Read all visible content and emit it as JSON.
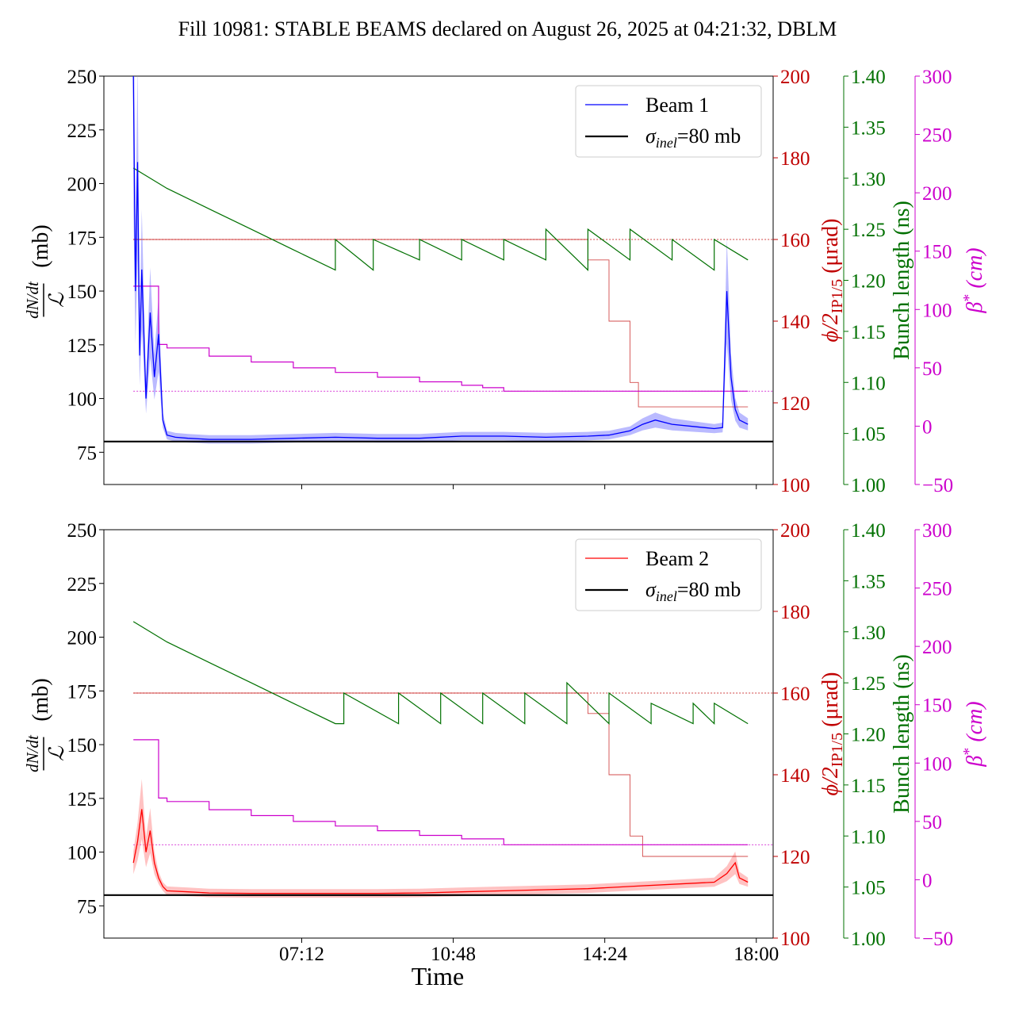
{
  "title": "Fill 10981: STABLE BEAMS declared on August 26, 2025 at 04:21:32, DBLM",
  "colors": {
    "beam1": "#0000ff",
    "beam1_band": "#8c8cff",
    "beam2": "#ff0000",
    "beam2_band": "#ff9a9a",
    "crossing_angle": "#c00000",
    "bunch_length": "#007000",
    "beta_star": "#cc00cc",
    "reference": "#000000"
  },
  "axis_labels": {
    "y_left_main": "dN/dt",
    "y_left_denom": "ℒ",
    "y_left_unit": "(mb)",
    "y_right1_main": "ϕ/2",
    "y_right1_sub": "IP1/5",
    "y_right1_unit": "(μrad)",
    "y_right2": "Bunch length (ns)",
    "y_right3_main": "β",
    "y_right3_sup": "*",
    "y_right3_unit": "(cm)",
    "x": "Time"
  },
  "ticks": {
    "left": [
      "75",
      "100",
      "125",
      "150",
      "175",
      "200",
      "225",
      "250"
    ],
    "right1": [
      "100",
      "120",
      "140",
      "160",
      "180",
      "200"
    ],
    "right2": [
      "1.00",
      "1.05",
      "1.10",
      "1.15",
      "1.20",
      "1.25",
      "1.30",
      "1.35",
      "1.40"
    ],
    "right3": [
      "−50",
      "0",
      "50",
      "100",
      "150",
      "200",
      "250",
      "300"
    ],
    "x": [
      "07:12",
      "10:48",
      "14:24",
      "18:00"
    ]
  },
  "legend": {
    "beam1": "Beam 1",
    "beam2": "Beam 2",
    "ref_sigma": "σ",
    "ref_sub": "inel",
    "ref_value": "=80 mb"
  },
  "chart_data": [
    {
      "type": "line",
      "panel": "Beam 1",
      "x_unit": "hours (clock time)",
      "x_range": [
        2.5,
        18.4
      ],
      "y_axes": {
        "left": {
          "label": "dN/dt / ℒ (mb)",
          "range": [
            60,
            250
          ]
        },
        "right1": {
          "label": "ϕ/2 IP1/5 (μrad)",
          "range": [
            100,
            200
          ]
        },
        "right2": {
          "label": "Bunch length (ns)",
          "range": [
            1.0,
            1.4
          ]
        },
        "right3": {
          "label": "β* (cm)",
          "range": [
            -50,
            300
          ]
        }
      },
      "reference_lines": {
        "sigma_inel_mb": 80,
        "crossing_angle_ref_urad": 160,
        "beta_star_ref_cm": 30
      },
      "series": [
        {
          "name": "Beam 1",
          "axis": "left",
          "x": [
            3.2,
            3.25,
            3.3,
            3.35,
            3.4,
            3.5,
            3.6,
            3.7,
            3.8,
            3.9,
            4.0,
            4.2,
            4.5,
            5.0,
            6.0,
            7.0,
            8.0,
            9.0,
            10.0,
            11.0,
            12.0,
            13.0,
            14.0,
            14.5,
            15.0,
            15.3,
            15.6,
            16.0,
            16.5,
            17.0,
            17.2,
            17.3,
            17.4,
            17.5,
            17.6,
            17.8
          ],
          "y": [
            250,
            150,
            210,
            120,
            160,
            100,
            140,
            110,
            130,
            90,
            83,
            82,
            81.5,
            81,
            81,
            81.5,
            82,
            81.5,
            81.5,
            82.5,
            82.5,
            82,
            82.5,
            83,
            85,
            88,
            90,
            88,
            87,
            86,
            86.5,
            150,
            110,
            95,
            90,
            88
          ]
        },
        {
          "name": "Crossing angle",
          "axis": "right1",
          "x": [
            3.2,
            3.6,
            3.8,
            4.0,
            5.0,
            6.0,
            7.0,
            8.0,
            9.0,
            10.0,
            11.0,
            12.0,
            13.0,
            13.5,
            14.0,
            14.5,
            15.0,
            15.2,
            16.0,
            17.0,
            17.8
          ],
          "y": [
            160,
            160,
            160,
            160,
            160,
            160,
            160,
            160,
            160,
            160,
            160,
            160,
            160,
            160,
            155,
            140,
            125,
            119,
            119,
            119,
            119
          ]
        },
        {
          "name": "Bunch length",
          "axis": "right2",
          "x": [
            3.2,
            4.0,
            5.0,
            6.0,
            7.0,
            8.0,
            8.0,
            8.9,
            8.9,
            10.0,
            10.0,
            11.0,
            11.0,
            12.0,
            12.0,
            13.0,
            13.0,
            14.0,
            14.0,
            15.0,
            15.0,
            16.0,
            16.0,
            17.0,
            17.0,
            17.8
          ],
          "y": [
            1.31,
            1.29,
            1.27,
            1.25,
            1.23,
            1.21,
            1.24,
            1.21,
            1.24,
            1.22,
            1.24,
            1.22,
            1.24,
            1.22,
            1.24,
            1.22,
            1.25,
            1.21,
            1.25,
            1.22,
            1.25,
            1.22,
            1.24,
            1.21,
            1.24,
            1.22
          ]
        },
        {
          "name": "Beta star",
          "axis": "right3",
          "x": [
            3.2,
            3.6,
            3.8,
            4.0,
            5.0,
            6.0,
            7.0,
            8.0,
            9.0,
            10.0,
            11.0,
            11.5,
            12.0,
            13.0,
            14.0,
            15.0,
            16.0,
            17.0,
            17.8
          ],
          "y": [
            120,
            120,
            70,
            67,
            60,
            55,
            50,
            46,
            42,
            38,
            35,
            33,
            30,
            30,
            30,
            30,
            30,
            30,
            30
          ]
        }
      ]
    },
    {
      "type": "line",
      "panel": "Beam 2",
      "x_unit": "hours (clock time)",
      "x_range": [
        2.5,
        18.4
      ],
      "y_axes": {
        "left": {
          "label": "dN/dt / ℒ (mb)",
          "range": [
            60,
            250
          ]
        },
        "right1": {
          "label": "ϕ/2 IP1/5 (μrad)",
          "range": [
            100,
            200
          ]
        },
        "right2": {
          "label": "Bunch length (ns)",
          "range": [
            1.0,
            1.4
          ]
        },
        "right3": {
          "label": "β* (cm)",
          "range": [
            -50,
            300
          ]
        }
      },
      "reference_lines": {
        "sigma_inel_mb": 80,
        "crossing_angle_ref_urad": 160,
        "beta_star_ref_cm": 30
      },
      "series": [
        {
          "name": "Beam 2",
          "axis": "left",
          "x": [
            3.2,
            3.3,
            3.4,
            3.5,
            3.6,
            3.7,
            3.8,
            3.9,
            4.0,
            4.5,
            5.0,
            6.0,
            7.0,
            8.0,
            9.0,
            10.0,
            11.0,
            12.0,
            13.0,
            14.0,
            15.0,
            16.0,
            17.0,
            17.3,
            17.5,
            17.6,
            17.8
          ],
          "y": [
            95,
            105,
            120,
            100,
            110,
            95,
            88,
            84,
            82,
            81.5,
            81,
            80.8,
            80.8,
            80.8,
            80.8,
            81,
            81.5,
            82,
            82.5,
            83,
            84,
            85,
            86,
            90,
            95,
            88,
            86
          ]
        },
        {
          "name": "Crossing angle",
          "axis": "right1",
          "x": [
            3.2,
            4.0,
            6.0,
            8.0,
            10.0,
            12.0,
            13.5,
            14.0,
            14.5,
            15.0,
            15.3,
            16.0,
            17.0,
            17.8
          ],
          "y": [
            160,
            160,
            160,
            160,
            160,
            160,
            160,
            155,
            140,
            125,
            120,
            120,
            120,
            120
          ]
        },
        {
          "name": "Bunch length",
          "axis": "right2",
          "x": [
            3.2,
            4.0,
            5.0,
            6.0,
            7.0,
            8.0,
            8.2,
            8.2,
            9.5,
            9.5,
            10.5,
            10.5,
            11.5,
            11.5,
            12.5,
            12.5,
            13.5,
            13.5,
            14.5,
            14.5,
            15.5,
            15.5,
            16.5,
            16.5,
            17.0,
            17.0,
            17.8
          ],
          "y": [
            1.31,
            1.29,
            1.27,
            1.25,
            1.23,
            1.21,
            1.21,
            1.24,
            1.21,
            1.24,
            1.21,
            1.24,
            1.21,
            1.24,
            1.21,
            1.24,
            1.21,
            1.25,
            1.21,
            1.24,
            1.21,
            1.23,
            1.21,
            1.23,
            1.21,
            1.23,
            1.21
          ]
        },
        {
          "name": "Beta star",
          "axis": "right3",
          "x": [
            3.2,
            3.6,
            3.8,
            4.0,
            5.0,
            6.0,
            7.0,
            8.0,
            9.0,
            10.0,
            11.0,
            12.0,
            13.0,
            14.0,
            15.0,
            16.0,
            17.0,
            17.8
          ],
          "y": [
            120,
            120,
            70,
            67,
            60,
            55,
            50,
            46,
            42,
            38,
            35,
            30,
            30,
            30,
            30,
            30,
            30,
            30
          ]
        }
      ]
    }
  ]
}
